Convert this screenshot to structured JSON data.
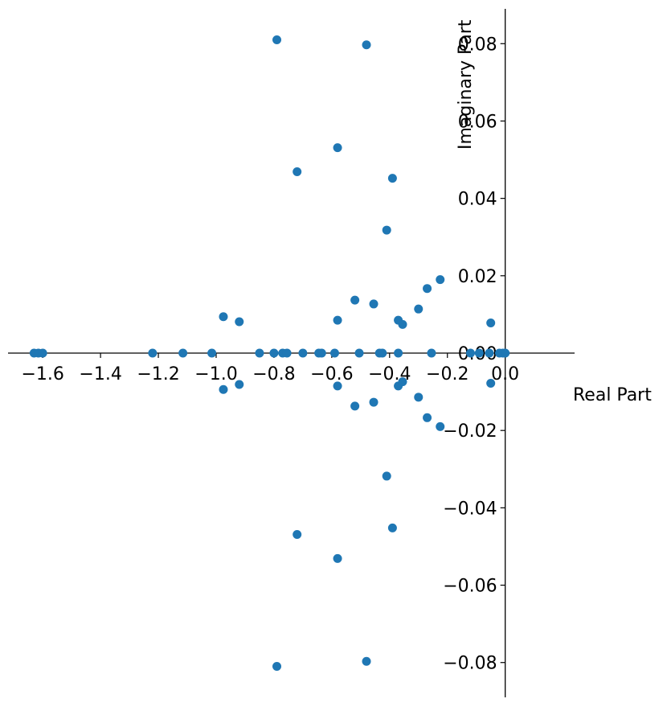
{
  "chart_data": {
    "type": "scatter",
    "title": "",
    "xlabel": "Real Part",
    "ylabel": "Imaginary Part",
    "xlim": [
      -1.72,
      0.24
    ],
    "ylim": [
      -0.089,
      0.089
    ],
    "xticks": [
      -1.6,
      -1.4,
      -1.2,
      -1.0,
      -0.8,
      -0.6,
      -0.4,
      -0.2,
      0.0
    ],
    "xtick_labels": [
      "−1.6",
      "−1.4",
      "−1.2",
      "−1.0",
      "−0.8",
      "−0.6",
      "−0.4",
      "−0.2",
      "0.0"
    ],
    "yticks": [
      0.08,
      0.06,
      0.04,
      0.02,
      0.0,
      -0.02,
      -0.04,
      -0.06,
      -0.08
    ],
    "ytick_labels": [
      "0.08",
      "0.06",
      "0.04",
      "0.02",
      "0.00",
      "−0.02",
      "−0.04",
      "−0.06",
      "−0.08"
    ],
    "grid": false,
    "spines": "centered",
    "marker_color": "#1f77b4",
    "points": [
      {
        "x": -0.79,
        "y": 0.081
      },
      {
        "x": -0.79,
        "y": -0.081
      },
      {
        "x": -0.48,
        "y": 0.0797
      },
      {
        "x": -0.48,
        "y": -0.0797
      },
      {
        "x": -0.58,
        "y": 0.0531
      },
      {
        "x": -0.58,
        "y": -0.0531
      },
      {
        "x": -0.72,
        "y": 0.0469
      },
      {
        "x": -0.72,
        "y": -0.0469
      },
      {
        "x": -0.39,
        "y": 0.0452
      },
      {
        "x": -0.39,
        "y": -0.0452
      },
      {
        "x": -0.41,
        "y": 0.0318
      },
      {
        "x": -0.41,
        "y": -0.0318
      },
      {
        "x": -0.225,
        "y": 0.019
      },
      {
        "x": -0.225,
        "y": -0.019
      },
      {
        "x": -0.27,
        "y": 0.0167
      },
      {
        "x": -0.27,
        "y": -0.0167
      },
      {
        "x": -0.52,
        "y": 0.0137
      },
      {
        "x": -0.52,
        "y": -0.0137
      },
      {
        "x": -0.455,
        "y": 0.0127
      },
      {
        "x": -0.455,
        "y": -0.0127
      },
      {
        "x": -0.3,
        "y": 0.0114
      },
      {
        "x": -0.3,
        "y": -0.0114
      },
      {
        "x": -0.975,
        "y": 0.0094
      },
      {
        "x": -0.975,
        "y": -0.0094
      },
      {
        "x": -0.58,
        "y": 0.0085
      },
      {
        "x": -0.58,
        "y": -0.0085
      },
      {
        "x": -0.37,
        "y": 0.0085
      },
      {
        "x": -0.37,
        "y": -0.0085
      },
      {
        "x": -0.92,
        "y": 0.0081
      },
      {
        "x": -0.92,
        "y": -0.0081
      },
      {
        "x": -0.05,
        "y": 0.0078
      },
      {
        "x": -0.05,
        "y": -0.0078
      },
      {
        "x": -0.355,
        "y": 0.0074
      },
      {
        "x": -0.355,
        "y": -0.0074
      },
      {
        "x": -1.63,
        "y": 0.0
      },
      {
        "x": -1.615,
        "y": 0.0
      },
      {
        "x": -1.6,
        "y": 0.0
      },
      {
        "x": -1.22,
        "y": 0.0
      },
      {
        "x": -1.115,
        "y": 0.0
      },
      {
        "x": -1.015,
        "y": 0.0
      },
      {
        "x": -0.85,
        "y": 0.0
      },
      {
        "x": -0.8,
        "y": 0.0
      },
      {
        "x": -0.77,
        "y": 0.0
      },
      {
        "x": -0.755,
        "y": 0.0
      },
      {
        "x": -0.7,
        "y": 0.0
      },
      {
        "x": -0.645,
        "y": 0.0
      },
      {
        "x": -0.635,
        "y": 0.0
      },
      {
        "x": -0.59,
        "y": 0.0
      },
      {
        "x": -0.505,
        "y": 0.0
      },
      {
        "x": -0.435,
        "y": 0.0
      },
      {
        "x": -0.425,
        "y": 0.0
      },
      {
        "x": -0.37,
        "y": 0.0
      },
      {
        "x": -0.255,
        "y": 0.0
      },
      {
        "x": -0.12,
        "y": 0.0
      },
      {
        "x": -0.09,
        "y": 0.0
      },
      {
        "x": -0.055,
        "y": 0.0
      },
      {
        "x": -0.02,
        "y": 0.0
      },
      {
        "x": -0.008,
        "y": 0.0
      },
      {
        "x": 0.0,
        "y": 0.0
      }
    ]
  }
}
